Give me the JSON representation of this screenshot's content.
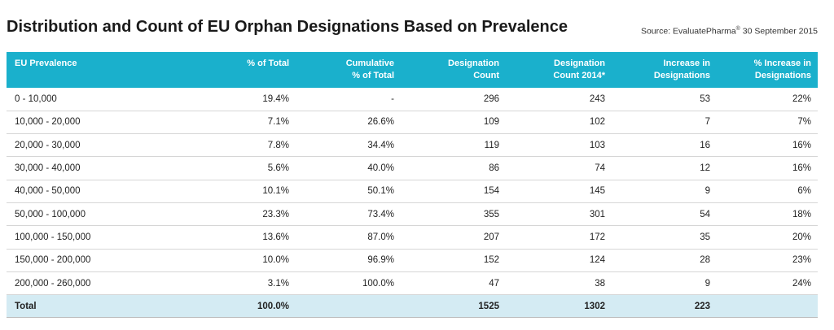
{
  "title": "Distribution and Count of EU Orphan Designations Based on Prevalence",
  "source": {
    "prefix": "Source: EvaluatePharma",
    "mark": "®",
    "suffix": " 30 September 2015"
  },
  "headers": [
    {
      "lines": [
        "EU Prevalence"
      ]
    },
    {
      "lines": [
        "% of Total"
      ]
    },
    {
      "lines": [
        "Cumulative",
        "% of Total"
      ]
    },
    {
      "lines": [
        "Designation",
        "Count"
      ]
    },
    {
      "lines": [
        "Designation",
        "Count 2014*"
      ]
    },
    {
      "lines": [
        "Increase in",
        "Designations"
      ]
    },
    {
      "lines": [
        "% Increase in",
        "Designations"
      ]
    }
  ],
  "rows": [
    [
      "0 - 10,000",
      "19.4%",
      "-",
      "296",
      "243",
      "53",
      "22%"
    ],
    [
      "10,000 - 20,000",
      "7.1%",
      "26.6%",
      "109",
      "102",
      "7",
      "7%"
    ],
    [
      "20,000 - 30,000",
      "7.8%",
      "34.4%",
      "119",
      "103",
      "16",
      "16%"
    ],
    [
      "30,000 - 40,000",
      "5.6%",
      "40.0%",
      "86",
      "74",
      "12",
      "16%"
    ],
    [
      "40,000 - 50,000",
      "10.1%",
      "50.1%",
      "154",
      "145",
      "9",
      "6%"
    ],
    [
      "50,000 - 100,000",
      "23.3%",
      "73.4%",
      "355",
      "301",
      "54",
      "18%"
    ],
    [
      "100,000 - 150,000",
      "13.6%",
      "87.0%",
      "207",
      "172",
      "35",
      "20%"
    ],
    [
      "150,000 - 200,000",
      "10.0%",
      "96.9%",
      "152",
      "124",
      "28",
      "23%"
    ],
    [
      "200,000 - 260,000",
      "3.1%",
      "100.0%",
      "47",
      "38",
      "9",
      "24%"
    ]
  ],
  "total": [
    "Total",
    "100.0%",
    "",
    "1525",
    "1302",
    "223",
    ""
  ],
  "colors": {
    "header_bg": "#1ab0cc",
    "total_bg": "#d4ebf3"
  }
}
